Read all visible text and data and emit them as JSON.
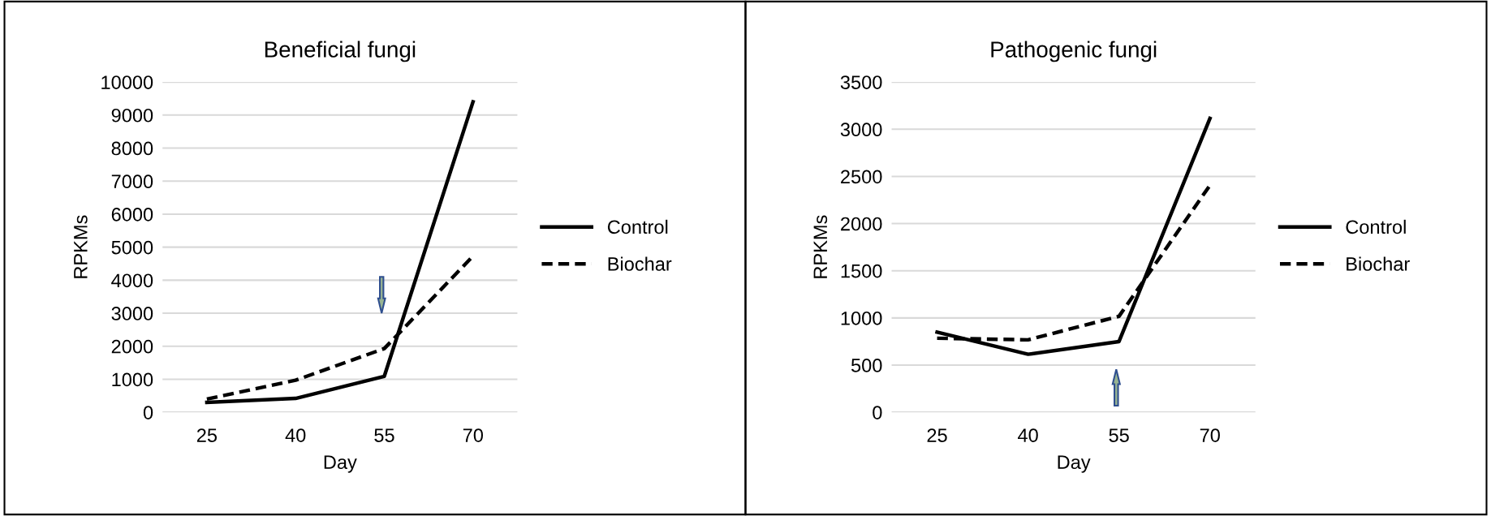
{
  "chart_data": [
    {
      "type": "line",
      "title": "Beneficial fungi",
      "xlabel": "Day",
      "ylabel": "RPKMs",
      "categories": [
        "25",
        "40",
        "55",
        "70"
      ],
      "series": [
        {
          "name": "Control",
          "color": "#000000",
          "line_style": "solid",
          "values": [
            300,
            420,
            1090,
            9400
          ]
        },
        {
          "name": "Biochar",
          "color": "#000000",
          "line_style": "dashed",
          "values": [
            400,
            970,
            1930,
            4730
          ]
        }
      ],
      "ylim": [
        0,
        10000
      ],
      "yticks": [
        0,
        1000,
        2000,
        3000,
        4000,
        5000,
        6000,
        7000,
        8000,
        9000,
        10000
      ],
      "grid": "y",
      "legend": "right"
    },
    {
      "type": "line",
      "title": "Pathogenic fungi",
      "xlabel": "Day",
      "ylabel": "RPKMs",
      "categories": [
        "25",
        "40",
        "55",
        "70"
      ],
      "series": [
        {
          "name": "Control",
          "color": "#000000",
          "line_style": "solid",
          "values": [
            850,
            615,
            750,
            3115
          ]
        },
        {
          "name": "Biochar",
          "color": "#000000",
          "line_style": "dashed",
          "values": [
            785,
            768,
            1017,
            2406
          ]
        }
      ],
      "ylim": [
        0,
        3500
      ],
      "yticks": [
        0,
        500,
        1000,
        1500,
        2000,
        2500,
        3000,
        3500
      ],
      "grid": "y",
      "legend": "right"
    }
  ]
}
